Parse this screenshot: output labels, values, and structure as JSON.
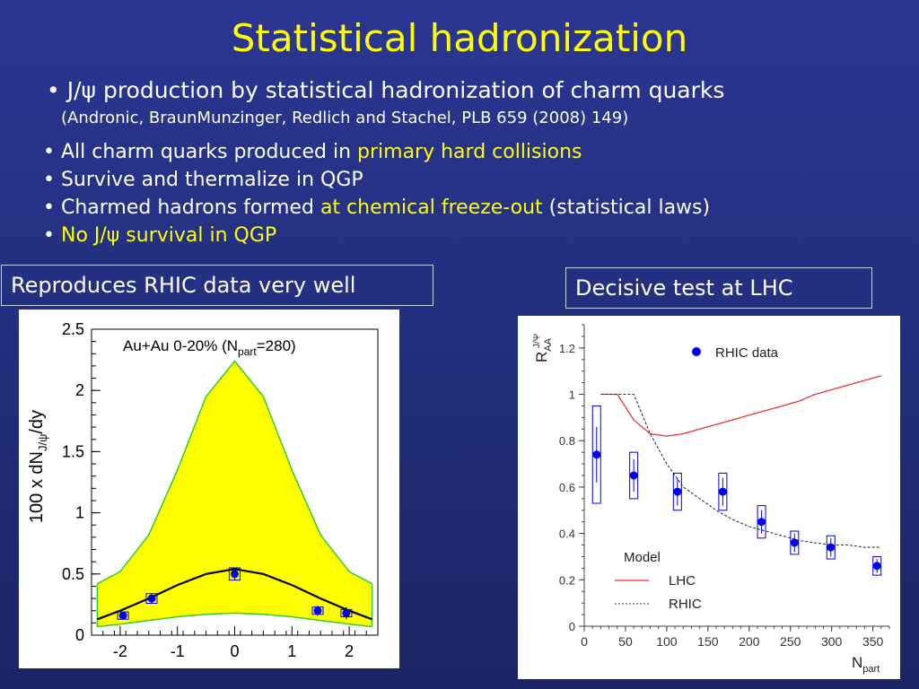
{
  "title": "Statistical hadronization",
  "intro": {
    "line1_pre": "• J/",
    "psi": "ψ",
    "line1_post": " production by statistical hadronization of charm quarks",
    "reference": "(Andronic, BraunMunzinger, Redlich and Stachel, PLB 659 (2008) 149)"
  },
  "bullets": [
    {
      "pre": "• All charm quarks produced in ",
      "hl": "primary hard collisions",
      "post": ""
    },
    {
      "pre": "• Survive and thermalize in QGP",
      "hl": "",
      "post": ""
    },
    {
      "pre": "• Charmed hadrons formed ",
      "hl": "at chemical freeze-out",
      "post": " (statistical laws)"
    },
    {
      "pre": "• ",
      "hl": "No J/ψ survival in QGP",
      "post": ""
    }
  ],
  "left_caption": "Reproduces RHIC data very well",
  "right_caption": "Decisive test at LHC",
  "chart_data": [
    {
      "type": "area",
      "ylabel": "100 x dN",
      "ylabel_sub": "J/ψ",
      "ylabel_tail": "/dy",
      "annotation": "Au+Au 0-20% (N",
      "annotation_sub": "part",
      "annotation_tail": "=280)",
      "xlim": [
        -2.5,
        2.5
      ],
      "ylim": [
        0,
        2.5
      ],
      "xticks": [
        "-2",
        "-1",
        "0",
        "1",
        "2"
      ],
      "yticks": [
        "0",
        "0.5",
        "1",
        "1.5",
        "2",
        "2.5"
      ],
      "band": {
        "x": [
          -2.4,
          -2.0,
          -1.5,
          -1.0,
          -0.5,
          0.0,
          0.5,
          1.0,
          1.5,
          2.0,
          2.4
        ],
        "upper": [
          0.42,
          0.52,
          0.82,
          1.35,
          1.95,
          2.24,
          1.95,
          1.35,
          0.82,
          0.52,
          0.42
        ],
        "lower": [
          0.07,
          0.09,
          0.12,
          0.15,
          0.17,
          0.18,
          0.17,
          0.15,
          0.12,
          0.09,
          0.07
        ],
        "fill": "#ffff00",
        "edge": "#33cc33"
      },
      "curve": {
        "x": [
          -2.4,
          -2.0,
          -1.5,
          -1.0,
          -0.5,
          0.0,
          0.5,
          1.0,
          1.5,
          2.0,
          2.4
        ],
        "y": [
          0.13,
          0.2,
          0.3,
          0.41,
          0.5,
          0.54,
          0.5,
          0.41,
          0.3,
          0.2,
          0.13
        ]
      },
      "points": [
        {
          "x": -1.95,
          "y": 0.16,
          "err": 0.03,
          "sys": 0.03
        },
        {
          "x": -1.45,
          "y": 0.3,
          "err": 0.04,
          "sys": 0.04
        },
        {
          "x": 0.0,
          "y": 0.5,
          "err": 0.05,
          "sys": 0.05
        },
        {
          "x": 1.45,
          "y": 0.2,
          "err": 0.04,
          "sys": 0.03
        },
        {
          "x": 1.95,
          "y": 0.18,
          "err": 0.05,
          "sys": 0.03
        }
      ],
      "colors": {
        "point": "#0000ee",
        "curve": "#000000"
      }
    },
    {
      "type": "line",
      "ylabel": "R",
      "ylabel_sub": "AA",
      "ylabel_sup": "J/Ψ",
      "xlabel": "N",
      "xlabel_sub": "part",
      "xlim": [
        0,
        370
      ],
      "ylim": [
        0,
        1.3
      ],
      "xticks": [
        "0",
        "50",
        "100",
        "150",
        "200",
        "250",
        "300",
        "350"
      ],
      "yticks": [
        "0",
        "0.2",
        "0.4",
        "0.6",
        "0.8",
        "1",
        "1.2"
      ],
      "legend_data": "RHIC data",
      "legend_model_title": "Model",
      "series": [
        {
          "name": "LHC",
          "x": [
            20,
            40,
            60,
            80,
            100,
            120,
            140,
            160,
            180,
            200,
            220,
            240,
            260,
            280,
            300,
            320,
            340,
            360
          ],
          "y": [
            1.0,
            1.0,
            0.89,
            0.83,
            0.82,
            0.83,
            0.85,
            0.87,
            0.89,
            0.91,
            0.93,
            0.95,
            0.97,
            1.0,
            1.02,
            1.04,
            1.06,
            1.08
          ],
          "color": "#ee3333"
        },
        {
          "name": "RHIC",
          "x": [
            20,
            40,
            60,
            80,
            100,
            120,
            140,
            160,
            180,
            200,
            220,
            240,
            260,
            280,
            300,
            320,
            340,
            360
          ],
          "y": [
            1.0,
            1.0,
            1.0,
            0.83,
            0.7,
            0.6,
            0.55,
            0.5,
            0.46,
            0.43,
            0.41,
            0.39,
            0.37,
            0.36,
            0.35,
            0.35,
            0.34,
            0.34
          ],
          "color": "#333333"
        }
      ],
      "points": [
        {
          "x": 15,
          "y": 0.74,
          "err": 0.12,
          "sys": 0.21
        },
        {
          "x": 60,
          "y": 0.65,
          "err": 0.07,
          "sys": 0.1
        },
        {
          "x": 113,
          "y": 0.58,
          "err": 0.06,
          "sys": 0.08
        },
        {
          "x": 168,
          "y": 0.58,
          "err": 0.06,
          "sys": 0.08
        },
        {
          "x": 215,
          "y": 0.45,
          "err": 0.05,
          "sys": 0.07
        },
        {
          "x": 255,
          "y": 0.36,
          "err": 0.04,
          "sys": 0.05
        },
        {
          "x": 299,
          "y": 0.34,
          "err": 0.04,
          "sys": 0.05
        },
        {
          "x": 355,
          "y": 0.26,
          "err": 0.03,
          "sys": 0.04
        }
      ],
      "colors": {
        "point": "#0000ee"
      }
    }
  ]
}
